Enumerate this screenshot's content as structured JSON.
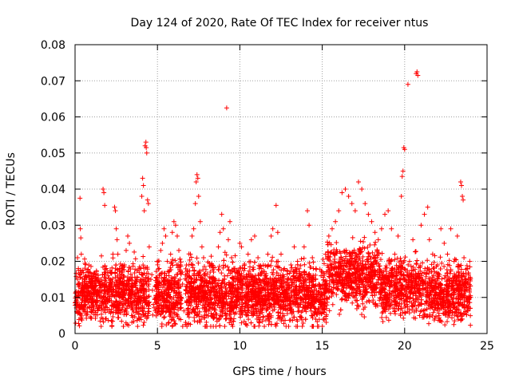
{
  "chart_data": {
    "type": "scatter",
    "title": "Day 124 of 2020, Rate Of TEC Index for receiver ntus",
    "xlabel": "GPS time / hours",
    "ylabel": "ROTI / TECUs",
    "xlim": [
      0,
      25
    ],
    "ylim": [
      0,
      0.08
    ],
    "x_ticks": [
      "0",
      "5",
      "10",
      "15",
      "20",
      "25"
    ],
    "y_ticks": [
      "0",
      "0.01",
      "0.02",
      "0.03",
      "0.04",
      "0.05",
      "0.06",
      "0.07",
      "0.08"
    ],
    "grid": true,
    "marker": "+",
    "color": "#ff0000",
    "series": [
      {
        "name": "ROTI",
        "points": [
          [
            0.0,
            0.0085
          ],
          [
            0.1,
            0.006
          ],
          [
            0.15,
            0.021
          ],
          [
            0.2,
            0.018
          ],
          [
            0.25,
            0.014
          ],
          [
            0.3,
            0.0375
          ],
          [
            0.32,
            0.029
          ],
          [
            0.35,
            0.0265
          ],
          [
            0.38,
            0.022
          ],
          [
            0.45,
            0.012
          ],
          [
            0.6,
            0.009
          ],
          [
            0.8,
            0.013
          ],
          [
            0.9,
            0.017
          ],
          [
            1.0,
            0.016
          ],
          [
            1.1,
            0.011
          ],
          [
            1.3,
            0.015
          ],
          [
            1.5,
            0.012
          ],
          [
            1.6,
            0.0215
          ],
          [
            1.7,
            0.04
          ],
          [
            1.75,
            0.039
          ],
          [
            1.8,
            0.0355
          ],
          [
            1.9,
            0.018
          ],
          [
            2.0,
            0.016
          ],
          [
            2.1,
            0.014
          ],
          [
            2.2,
            0.017
          ],
          [
            2.3,
            0.022
          ],
          [
            2.4,
            0.035
          ],
          [
            2.45,
            0.034
          ],
          [
            2.5,
            0.029
          ],
          [
            2.55,
            0.026
          ],
          [
            2.6,
            0.022
          ],
          [
            2.7,
            0.018
          ],
          [
            2.9,
            0.011
          ],
          [
            3.0,
            0.019
          ],
          [
            3.1,
            0.023
          ],
          [
            3.2,
            0.027
          ],
          [
            3.3,
            0.025
          ],
          [
            3.4,
            0.015
          ],
          [
            3.5,
            0.013
          ],
          [
            3.6,
            0.009
          ],
          [
            3.7,
            0.008
          ],
          [
            3.8,
            0.012
          ],
          [
            4.0,
            0.018
          ],
          [
            4.05,
            0.038
          ],
          [
            4.1,
            0.043
          ],
          [
            4.15,
            0.041
          ],
          [
            4.2,
            0.034
          ],
          [
            4.25,
            0.052
          ],
          [
            4.3,
            0.053
          ],
          [
            4.32,
            0.0515
          ],
          [
            4.35,
            0.05
          ],
          [
            4.4,
            0.037
          ],
          [
            4.45,
            0.036
          ],
          [
            4.5,
            0.024
          ],
          [
            4.6,
            0.015
          ],
          [
            4.7,
            0.012
          ],
          [
            4.9,
            0.01
          ],
          [
            5.0,
            0.014
          ],
          [
            5.1,
            0.018
          ],
          [
            5.2,
            0.023
          ],
          [
            5.3,
            0.025
          ],
          [
            5.4,
            0.029
          ],
          [
            5.5,
            0.027
          ],
          [
            5.6,
            0.02
          ],
          [
            5.7,
            0.016
          ],
          [
            5.8,
            0.022
          ],
          [
            5.9,
            0.028
          ],
          [
            6.0,
            0.031
          ],
          [
            6.1,
            0.03
          ],
          [
            6.2,
            0.027
          ],
          [
            6.3,
            0.023
          ],
          [
            6.4,
            0.019
          ],
          [
            6.5,
            0.017
          ],
          [
            6.7,
            0.0025
          ],
          [
            6.8,
            0.009
          ],
          [
            6.9,
            0.016
          ],
          [
            7.0,
            0.022
          ],
          [
            7.1,
            0.027
          ],
          [
            7.2,
            0.029
          ],
          [
            7.3,
            0.036
          ],
          [
            7.35,
            0.042
          ],
          [
            7.4,
            0.044
          ],
          [
            7.45,
            0.043
          ],
          [
            7.5,
            0.038
          ],
          [
            7.6,
            0.031
          ],
          [
            7.7,
            0.024
          ],
          [
            7.8,
            0.021
          ],
          [
            7.9,
            0.016
          ],
          [
            8.0,
            0.014
          ],
          [
            8.1,
            0.012
          ],
          [
            8.3,
            0.019
          ],
          [
            8.5,
            0.013
          ],
          [
            8.7,
            0.024
          ],
          [
            8.8,
            0.028
          ],
          [
            8.9,
            0.033
          ],
          [
            9.0,
            0.029
          ],
          [
            9.1,
            0.0225
          ],
          [
            9.2,
            0.0625
          ],
          [
            9.3,
            0.026
          ],
          [
            9.4,
            0.031
          ],
          [
            9.5,
            0.021
          ],
          [
            9.7,
            0.018
          ],
          [
            9.9,
            0.015
          ],
          [
            10.0,
            0.025
          ],
          [
            10.1,
            0.024
          ],
          [
            10.3,
            0.018
          ],
          [
            10.5,
            0.022
          ],
          [
            10.7,
            0.026
          ],
          [
            10.9,
            0.027
          ],
          [
            11.1,
            0.021
          ],
          [
            11.3,
            0.018
          ],
          [
            11.5,
            0.016
          ],
          [
            11.7,
            0.022
          ],
          [
            11.9,
            0.027
          ],
          [
            12.0,
            0.029
          ],
          [
            12.2,
            0.0355
          ],
          [
            12.3,
            0.028
          ],
          [
            12.5,
            0.022
          ],
          [
            12.7,
            0.018
          ],
          [
            12.9,
            0.015
          ],
          [
            13.1,
            0.019
          ],
          [
            13.3,
            0.024
          ],
          [
            13.5,
            0.02
          ],
          [
            13.7,
            0.016
          ],
          [
            13.9,
            0.024
          ],
          [
            14.1,
            0.034
          ],
          [
            14.2,
            0.03
          ],
          [
            14.4,
            0.021
          ],
          [
            14.6,
            0.015
          ],
          [
            14.8,
            0.013
          ],
          [
            15.0,
            0.017
          ],
          [
            15.2,
            0.022
          ],
          [
            15.4,
            0.027
          ],
          [
            15.6,
            0.029
          ],
          [
            15.8,
            0.031
          ],
          [
            16.0,
            0.034
          ],
          [
            16.2,
            0.039
          ],
          [
            16.4,
            0.04
          ],
          [
            16.6,
            0.038
          ],
          [
            16.8,
            0.036
          ],
          [
            17.0,
            0.034
          ],
          [
            17.2,
            0.042
          ],
          [
            17.4,
            0.04
          ],
          [
            17.6,
            0.036
          ],
          [
            17.8,
            0.033
          ],
          [
            18.0,
            0.031
          ],
          [
            18.2,
            0.028
          ],
          [
            18.4,
            0.026
          ],
          [
            18.6,
            0.029
          ],
          [
            18.8,
            0.033
          ],
          [
            19.0,
            0.034
          ],
          [
            19.2,
            0.029
          ],
          [
            19.4,
            0.022
          ],
          [
            19.6,
            0.027
          ],
          [
            19.8,
            0.038
          ],
          [
            19.85,
            0.0435
          ],
          [
            19.9,
            0.045
          ],
          [
            19.95,
            0.0515
          ],
          [
            20.0,
            0.051
          ],
          [
            20.2,
            0.069
          ],
          [
            20.3,
            0.02
          ],
          [
            20.5,
            0.026
          ],
          [
            20.7,
            0.072
          ],
          [
            20.75,
            0.0725
          ],
          [
            20.8,
            0.0715
          ],
          [
            21.0,
            0.03
          ],
          [
            21.2,
            0.033
          ],
          [
            21.4,
            0.035
          ],
          [
            21.5,
            0.026
          ],
          [
            21.7,
            0.022
          ],
          [
            22.0,
            0.019
          ],
          [
            22.2,
            0.029
          ],
          [
            22.4,
            0.025
          ],
          [
            22.6,
            0.022
          ],
          [
            22.8,
            0.029
          ],
          [
            23.0,
            0.02
          ],
          [
            23.2,
            0.027
          ],
          [
            23.4,
            0.042
          ],
          [
            23.45,
            0.041
          ],
          [
            23.5,
            0.038
          ],
          [
            23.55,
            0.037
          ],
          [
            23.6,
            0.021
          ],
          [
            23.8,
            0.018
          ],
          [
            23.95,
            0.02
          ]
        ],
        "band_note": "dense cloud of points between roughly 0.003 and 0.02 across the full 0-24 h range"
      }
    ]
  }
}
